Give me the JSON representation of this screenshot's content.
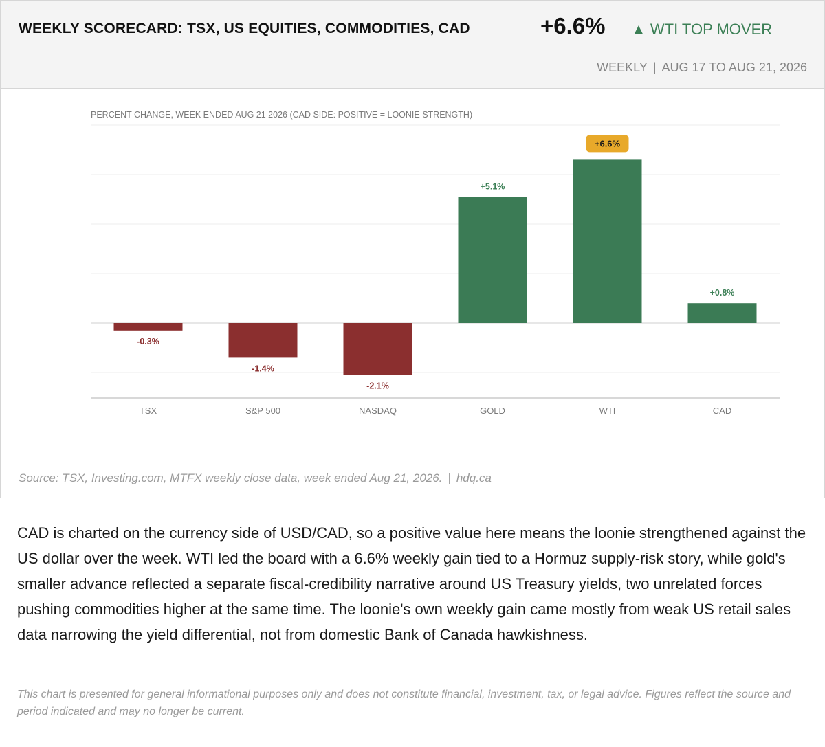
{
  "header": {
    "title": "WEEKLY SCORECARD: TSX, US EQUITIES, COMMODITIES, CAD",
    "headline_value": "+6.6%",
    "mover_arrow": "▲",
    "mover_label": "WTI TOP MOVER",
    "frequency": "WEEKLY",
    "separator": "|",
    "date_range": "AUG 17 TO AUG 21, 2026"
  },
  "colors": {
    "positive": "#3b7b55",
    "negative": "#8b2f2f",
    "highlight_badge": "#e8a92a",
    "positive_text": "#3b7f55"
  },
  "chart_data": {
    "type": "bar",
    "subtitle": "PERCENT CHANGE, WEEK ENDED AUG 21 2026 (CAD SIDE: POSITIVE = LOONIE STRENGTH)",
    "categories": [
      "TSX",
      "S&P 500",
      "NASDAQ",
      "GOLD",
      "WTI",
      "CAD"
    ],
    "values": [
      -0.3,
      -1.4,
      -2.1,
      5.1,
      6.6,
      0.8
    ],
    "labels": [
      "-0.3%",
      "-1.4%",
      "-2.1%",
      "+5.1%",
      "+6.6%",
      "+0.8%"
    ],
    "highlight_index": 4,
    "ylim": [
      -3,
      8
    ],
    "grid": true,
    "xlabel": "",
    "ylabel": ""
  },
  "footer": {
    "source": "Source: TSX, Investing.com, MTFX weekly close data, week ended Aug 21, 2026.",
    "separator": "|",
    "site": "hdq.ca"
  },
  "commentary": "CAD is charted on the currency side of USD/CAD, so a positive value here means the loonie strengthened against the US dollar over the week. WTI led the board with a 6.6% weekly gain tied to a Hormuz supply-risk story, while gold's smaller advance reflected a separate fiscal-credibility narrative around US Treasury yields, two unrelated forces pushing commodities higher at the same time. The loonie's own weekly gain came mostly from weak US retail sales data narrowing the yield differential, not from domestic Bank of Canada hawkishness.",
  "disclaimer": "This chart is presented for general informational purposes only and does not constitute financial, investment, tax, or legal advice. Figures reflect the source and period indicated and may no longer be current."
}
